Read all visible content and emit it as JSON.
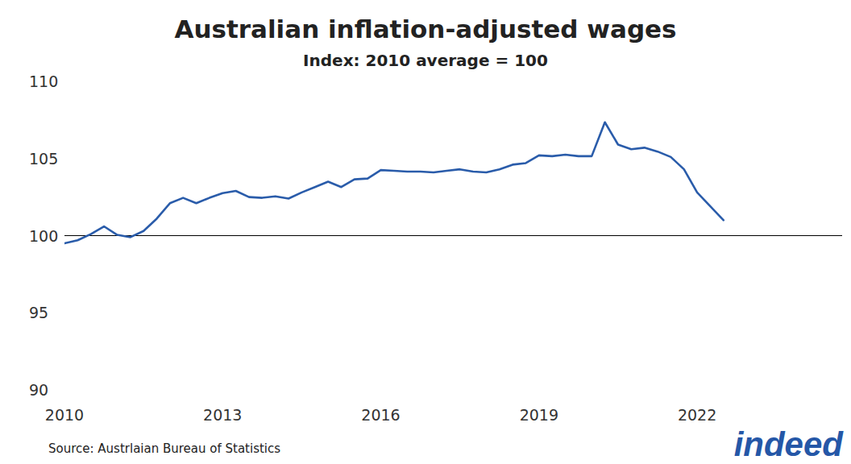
{
  "chart_data": {
    "type": "line",
    "title": "Australian inflation-adjusted wages",
    "subtitle": "Index: 2010 average = 100",
    "source": "Source: Austrlaian Bureau of Statistics",
    "logo": "indeed",
    "x": [
      2010,
      2010.25,
      2010.5,
      2010.75,
      2011,
      2011.25,
      2011.5,
      2011.75,
      2012,
      2012.25,
      2012.5,
      2012.75,
      2013,
      2013.25,
      2013.5,
      2013.75,
      2014,
      2014.25,
      2014.5,
      2014.75,
      2015,
      2015.25,
      2015.5,
      2015.75,
      2016,
      2016.25,
      2016.5,
      2016.75,
      2017,
      2017.25,
      2017.5,
      2017.75,
      2018,
      2018.25,
      2018.5,
      2018.75,
      2019,
      2019.25,
      2019.5,
      2019.75,
      2020,
      2020.25,
      2020.5,
      2020.75,
      2021,
      2021.25,
      2021.5,
      2021.75,
      2022,
      2022.25,
      2022.5
    ],
    "series": [
      {
        "name": "Australian inflation-adjusted wages",
        "color": "#2a5caa",
        "values": [
          99.5,
          99.7,
          100.1,
          100.6,
          100.05,
          99.9,
          100.3,
          101.1,
          102.1,
          102.45,
          102.1,
          102.45,
          102.75,
          102.9,
          102.5,
          102.45,
          102.55,
          102.4,
          102.8,
          103.15,
          103.5,
          103.15,
          103.65,
          103.7,
          104.25,
          104.2,
          104.15,
          104.15,
          104.1,
          104.2,
          104.3,
          104.15,
          104.1,
          104.3,
          104.6,
          104.7,
          105.2,
          105.15,
          105.25,
          105.15,
          105.15,
          107.35,
          105.9,
          105.6,
          105.7,
          105.45,
          105.1,
          104.3,
          102.8,
          101.9,
          101.0
        ]
      }
    ],
    "xlim": [
      2010,
      2024.75
    ],
    "xticks": [
      2010,
      2013,
      2016,
      2019,
      2022
    ],
    "ylim": [
      90,
      110
    ],
    "yticks": [
      90,
      95,
      100,
      105,
      110
    ],
    "hline": 100,
    "grid": false
  }
}
